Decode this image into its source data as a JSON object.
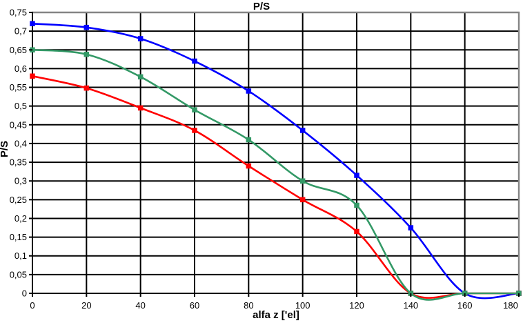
{
  "chart_data": {
    "type": "line",
    "title": "P/S",
    "xlabel": "alfa z ['el]",
    "ylabel": "P/S",
    "x": [
      0,
      20,
      40,
      60,
      80,
      100,
      120,
      140,
      160,
      180
    ],
    "x_tick_labels": [
      "0",
      "20",
      "40",
      "60",
      "80",
      "100",
      "120",
      "140",
      "160",
      "180"
    ],
    "y_tick_labels": [
      "0",
      "0,05",
      "0,1",
      "0,15",
      "0,2",
      "0,25",
      "0,3",
      "0,35",
      "0,4",
      "0,45",
      "0,5",
      "0,55",
      "0,6",
      "0,65",
      "0,7",
      "0,75"
    ],
    "y_tick_values": [
      0,
      0.05,
      0.1,
      0.15,
      0.2,
      0.25,
      0.3,
      0.35,
      0.4,
      0.45,
      0.5,
      0.55,
      0.6,
      0.65,
      0.7,
      0.75
    ],
    "xlim": [
      0,
      180
    ],
    "ylim": [
      0,
      0.75
    ],
    "grid": true,
    "legend": "none",
    "marker": "square",
    "line_style": "smooth",
    "decimal_separator": ",",
    "series": [
      {
        "name": "blue-series",
        "color": "#0000FF",
        "values": [
          0.72,
          0.71,
          0.68,
          0.62,
          0.54,
          0.435,
          0.315,
          0.175,
          0,
          0
        ]
      },
      {
        "name": "green-series",
        "color": "#339966",
        "values": [
          0.65,
          0.638,
          0.578,
          0.49,
          0.41,
          0.3,
          0.235,
          0,
          0,
          0
        ]
      },
      {
        "name": "red-series",
        "color": "#FF0000",
        "values": [
          0.58,
          0.548,
          0.495,
          0.435,
          0.34,
          0.25,
          0.165,
          0,
          0,
          0
        ]
      }
    ]
  },
  "colors": {
    "gridline": "#000000",
    "axis": "#000000",
    "border": "#848484",
    "background": "#FFFFFF"
  }
}
